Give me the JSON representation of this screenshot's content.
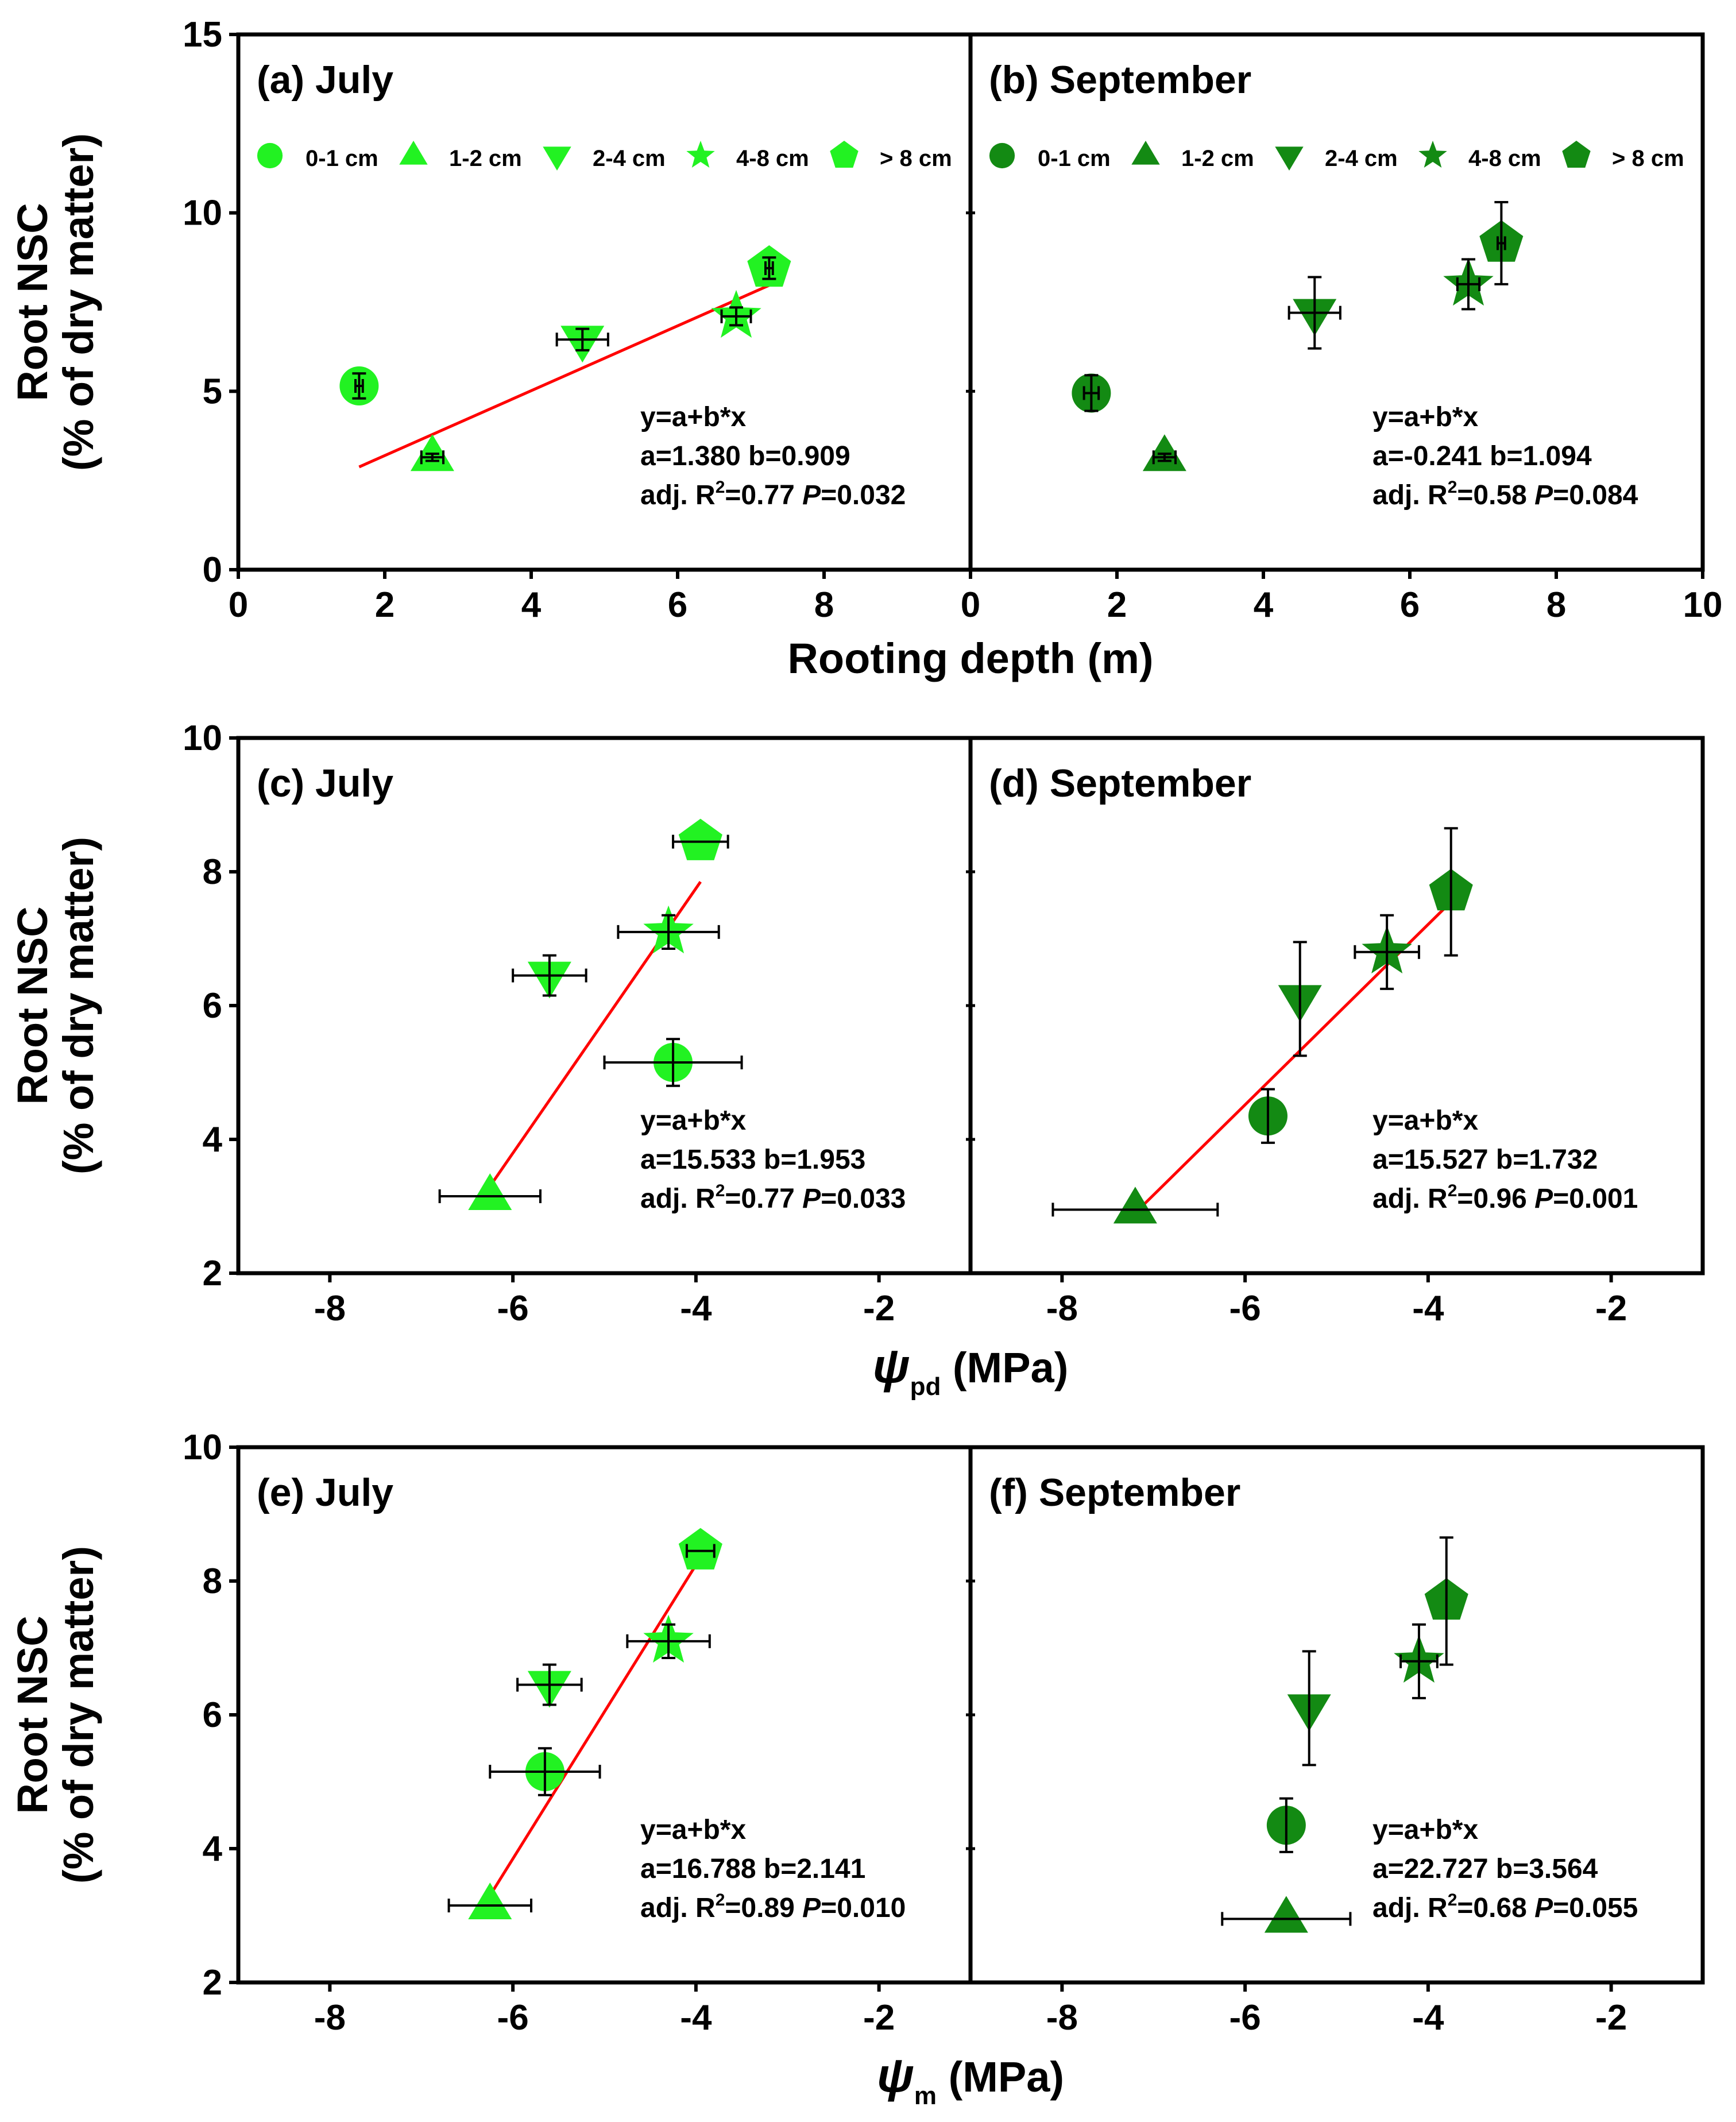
{
  "colors": {
    "july": "#22f222",
    "september": "#138a13",
    "fit": "#ff0000",
    "axis": "#000000",
    "error_bar": "#000000"
  },
  "legend": [
    {
      "label": "0-1 cm",
      "marker": "circle"
    },
    {
      "label": "1-2 cm",
      "marker": "triangle-up"
    },
    {
      "label": "2-4 cm",
      "marker": "triangle-down"
    },
    {
      "label": "4-8 cm",
      "marker": "star"
    },
    {
      "label": "> 8 cm",
      "marker": "pentagon"
    }
  ],
  "y_axis": {
    "title_line1": "Root NSC",
    "title_line2": "(% of dry matter)"
  },
  "rows": [
    {
      "id": "depth",
      "x_title": "Rooting depth (m)",
      "x_symbol": "",
      "x_subscript": "",
      "x_unit": "",
      "xlim": [
        0,
        10
      ],
      "ylim": [
        0,
        15
      ],
      "yticks": [
        0,
        5,
        10,
        15
      ],
      "xticks_left": [
        0,
        2,
        4,
        6,
        8
      ],
      "xticks_right": [
        0,
        2,
        4,
        6,
        8,
        10
      ],
      "shared_x": true
    },
    {
      "id": "psi_pd",
      "x_title": "",
      "x_symbol": "ψ",
      "x_subscript": "pd",
      "x_unit": "(MPa)",
      "xlim": [
        -9,
        -1
      ],
      "ylim": [
        2,
        10
      ],
      "yticks": [
        2,
        4,
        6,
        8,
        10
      ],
      "xticks_left": [
        -8,
        -6,
        -4,
        -2
      ],
      "xticks_right": [
        -8,
        -6,
        -4,
        -2
      ],
      "shared_x": false
    },
    {
      "id": "psi_m",
      "x_title": "",
      "x_symbol": "ψ",
      "x_subscript": "m",
      "x_unit": "(MPa)",
      "xlim": [
        -9,
        -1
      ],
      "ylim": [
        2,
        10
      ],
      "yticks": [
        2,
        4,
        6,
        8,
        10
      ],
      "xticks_left": [
        -8,
        -6,
        -4,
        -2
      ],
      "xticks_right": [
        -8,
        -6,
        -4,
        -2
      ],
      "shared_x": false
    }
  ],
  "chart_data": [
    {
      "type": "scatter",
      "panel": "(a) July",
      "month": "july",
      "row": 0,
      "col": 0,
      "xlabel": "Rooting depth (m)",
      "ylabel": "Root NSC (% of dry matter)",
      "xlim": [
        0,
        10
      ],
      "ylim": [
        0,
        15
      ],
      "show_legend": true,
      "points": [
        {
          "series": "0-1 cm",
          "x": 1.65,
          "y": 5.15,
          "xerr": 0.05,
          "yerr": 0.35
        },
        {
          "series": "1-2 cm",
          "x": 2.65,
          "y": 3.15,
          "xerr": 0.15,
          "yerr": 0.1
        },
        {
          "series": "2-4 cm",
          "x": 4.7,
          "y": 6.45,
          "xerr": 0.35,
          "yerr": 0.3
        },
        {
          "series": "4-8 cm",
          "x": 6.8,
          "y": 7.1,
          "xerr": 0.2,
          "yerr": 0.25
        },
        {
          "series": "> 8 cm",
          "x": 7.25,
          "y": 8.45,
          "xerr": 0.05,
          "yerr": 0.3
        }
      ],
      "fit": {
        "x": [
          1.65,
          7.25
        ],
        "y": [
          2.88,
          7.97
        ]
      },
      "equation": {
        "line1": "y=a+b*x",
        "line2": "a=1.380 b=0.909",
        "r2_prefix": "adj. R",
        "r2_value": "=0.77",
        "p_label": "P",
        "p_value": "=0.032"
      }
    },
    {
      "type": "scatter",
      "panel": "(b) September",
      "month": "september",
      "row": 0,
      "col": 1,
      "xlabel": "Rooting depth (m)",
      "ylabel": "Root NSC (% of dry matter)",
      "xlim": [
        0,
        10
      ],
      "ylim": [
        0,
        15
      ],
      "show_legend": true,
      "points": [
        {
          "series": "0-1 cm",
          "x": 1.65,
          "y": 4.95,
          "xerr": 0.1,
          "yerr": 0.5
        },
        {
          "series": "1-2 cm",
          "x": 2.65,
          "y": 3.15,
          "xerr": 0.15,
          "yerr": 0.1
        },
        {
          "series": "2-4 cm",
          "x": 4.7,
          "y": 7.2,
          "xerr": 0.35,
          "yerr": 1.0
        },
        {
          "series": "4-8 cm",
          "x": 6.8,
          "y": 8.0,
          "xerr": 0.15,
          "yerr": 0.7
        },
        {
          "series": "> 8 cm",
          "x": 7.25,
          "y": 9.15,
          "xerr": 0.05,
          "yerr": 1.15
        }
      ],
      "fit": null,
      "equation": {
        "line1": "y=a+b*x",
        "line2": "a=-0.241 b=1.094",
        "r2_prefix": "adj. R",
        "r2_value": "=0.58",
        "p_label": "P",
        "p_value": "=0.084"
      }
    },
    {
      "type": "scatter",
      "panel": "(c) July",
      "month": "july",
      "row": 1,
      "col": 0,
      "xlabel": "ψpd (MPa)",
      "ylabel": "Root NSC (% of dry matter)",
      "xlim": [
        -9,
        -1
      ],
      "ylim": [
        2,
        10
      ],
      "show_legend": false,
      "points": [
        {
          "series": "0-1 cm",
          "x": -4.25,
          "y": 5.15,
          "xerr": 0.75,
          "yerr": 0.35
        },
        {
          "series": "1-2 cm",
          "x": -6.25,
          "y": 3.15,
          "xerr": 0.55,
          "yerr": 0.0
        },
        {
          "series": "2-4 cm",
          "x": -5.6,
          "y": 6.45,
          "xerr": 0.4,
          "yerr": 0.3
        },
        {
          "series": "4-8 cm",
          "x": -4.3,
          "y": 7.1,
          "xerr": 0.55,
          "yerr": 0.25
        },
        {
          "series": "> 8 cm",
          "x": -3.95,
          "y": 8.45,
          "xerr": 0.3,
          "yerr": 0.0
        }
      ],
      "fit": {
        "x": [
          -6.25,
          -3.95
        ],
        "y": [
          3.3,
          7.85
        ]
      },
      "equation": {
        "line1": "y=a+b*x",
        "line2": "a=15.533 b=1.953",
        "r2_prefix": "adj. R",
        "r2_value": "=0.77",
        "p_label": "P",
        "p_value": "=0.033"
      }
    },
    {
      "type": "scatter",
      "panel": "(d) September",
      "month": "september",
      "row": 1,
      "col": 1,
      "xlabel": "ψpd (MPa)",
      "ylabel": "Root NSC (% of dry matter)",
      "xlim": [
        -9,
        -1
      ],
      "ylim": [
        2,
        10
      ],
      "show_legend": false,
      "points": [
        {
          "series": "0-1 cm",
          "x": -5.75,
          "y": 4.35,
          "xerr": 0.0,
          "yerr": 0.4
        },
        {
          "series": "1-2 cm",
          "x": -7.2,
          "y": 2.95,
          "xerr": 0.9,
          "yerr": 0.0
        },
        {
          "series": "2-4 cm",
          "x": -5.4,
          "y": 6.1,
          "xerr": 0.0,
          "yerr": 0.85
        },
        {
          "series": "4-8 cm",
          "x": -4.45,
          "y": 6.8,
          "xerr": 0.35,
          "yerr": 0.55
        },
        {
          "series": "> 8 cm",
          "x": -3.75,
          "y": 7.7,
          "xerr": 0.0,
          "yerr": 0.95
        }
      ],
      "fit": {
        "x": [
          -7.2,
          -3.75
        ],
        "y": [
          2.9,
          7.55
        ]
      },
      "equation": {
        "line1": "y=a+b*x",
        "line2": "a=15.527 b=1.732",
        "r2_prefix": "adj. R",
        "r2_value": "=0.96",
        "p_label": "P",
        "p_value": "=0.001"
      }
    },
    {
      "type": "scatter",
      "panel": "(e) July",
      "month": "july",
      "row": 2,
      "col": 0,
      "xlabel": "ψm (MPa)",
      "ylabel": "Root NSC (% of dry matter)",
      "xlim": [
        -9,
        -1
      ],
      "ylim": [
        2,
        10
      ],
      "show_legend": false,
      "points": [
        {
          "series": "0-1 cm",
          "x": -5.65,
          "y": 5.15,
          "xerr": 0.6,
          "yerr": 0.35
        },
        {
          "series": "1-2 cm",
          "x": -6.25,
          "y": 3.15,
          "xerr": 0.45,
          "yerr": 0.0
        },
        {
          "series": "2-4 cm",
          "x": -5.6,
          "y": 6.45,
          "xerr": 0.35,
          "yerr": 0.3
        },
        {
          "series": "4-8 cm",
          "x": -4.3,
          "y": 7.1,
          "xerr": 0.45,
          "yerr": 0.25
        },
        {
          "series": "> 8 cm",
          "x": -3.95,
          "y": 8.45,
          "xerr": 0.15,
          "yerr": 0.0
        }
      ],
      "fit": {
        "x": [
          -6.25,
          -3.95
        ],
        "y": [
          3.3,
          8.35
        ]
      },
      "equation": {
        "line1": "y=a+b*x",
        "line2": "a=16.788 b=2.141",
        "r2_prefix": "adj. R",
        "r2_value": "=0.89",
        "p_label": "P",
        "p_value": "=0.010"
      }
    },
    {
      "type": "scatter",
      "panel": "(f) September",
      "month": "september",
      "row": 2,
      "col": 1,
      "xlabel": "ψm (MPa)",
      "ylabel": "Root NSC (% of dry matter)",
      "xlim": [
        -9,
        -1
      ],
      "ylim": [
        2,
        10
      ],
      "show_legend": false,
      "points": [
        {
          "series": "0-1 cm",
          "x": -5.55,
          "y": 4.35,
          "xerr": 0.0,
          "yerr": 0.4
        },
        {
          "series": "1-2 cm",
          "x": -5.55,
          "y": 2.95,
          "xerr": 0.7,
          "yerr": 0.0
        },
        {
          "series": "2-4 cm",
          "x": -5.3,
          "y": 6.1,
          "xerr": 0.0,
          "yerr": 0.85
        },
        {
          "series": "4-8 cm",
          "x": -4.1,
          "y": 6.8,
          "xerr": 0.2,
          "yerr": 0.55
        },
        {
          "series": "> 8 cm",
          "x": -3.8,
          "y": 7.7,
          "xerr": 0.0,
          "yerr": 0.95
        }
      ],
      "fit": null,
      "equation": {
        "line1": "y=a+b*x",
        "line2": "a=22.727 b=3.564",
        "r2_prefix": "adj. R",
        "r2_value": "=0.68",
        "p_label": "P",
        "p_value": "=0.055"
      }
    }
  ]
}
